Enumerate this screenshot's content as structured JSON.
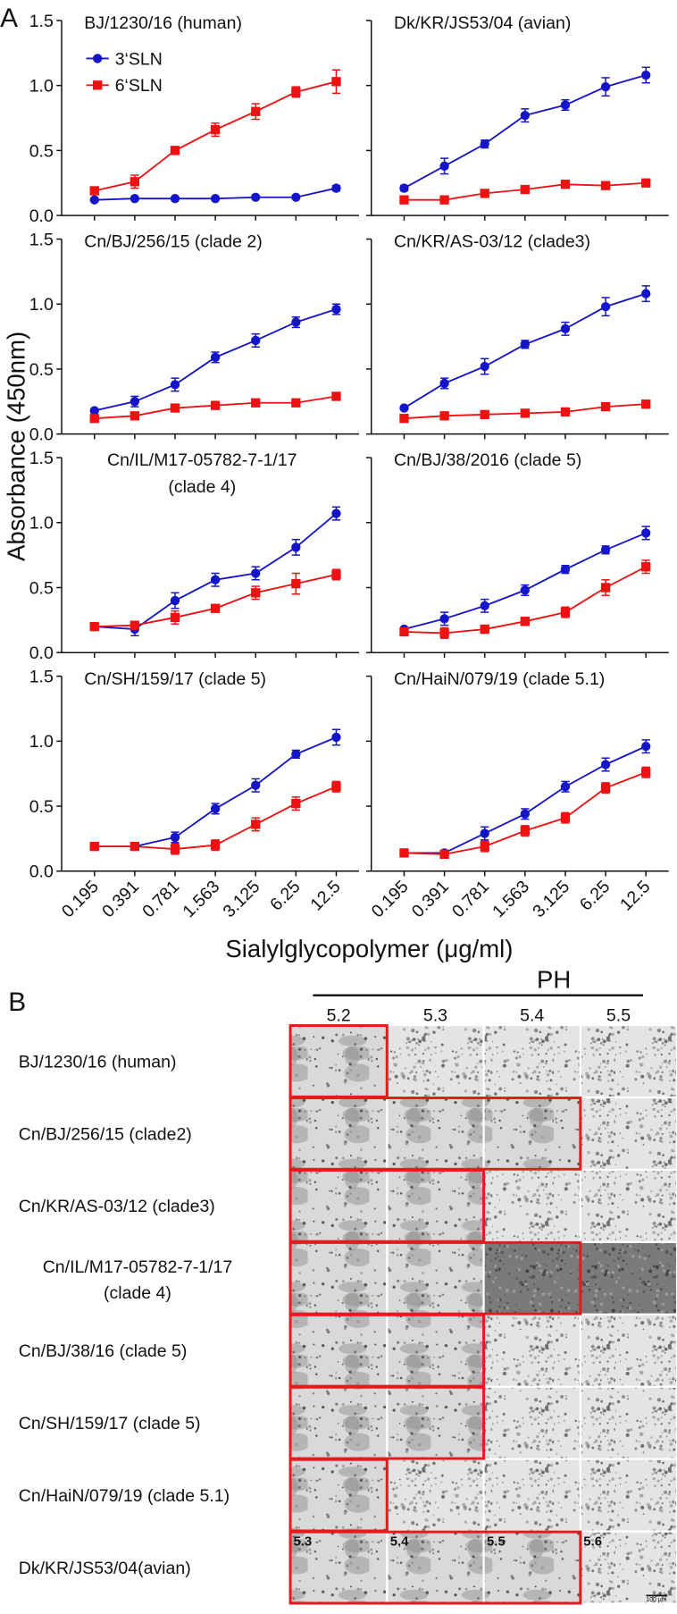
{
  "panel_labels": [
    "A",
    "B"
  ],
  "y_label": "Absorbance (450nm)",
  "x_label": "Sialylglycopolymer (μg/ml)",
  "chart_data": [
    {
      "type": "line",
      "title": "BJ/1230/16 (human)",
      "legend": true,
      "ytick_labels": true,
      "xtick_labels": false,
      "categories": [
        "0.195",
        "0.391",
        "0.781",
        "1.563",
        "3.125",
        "6.25",
        "12.5"
      ],
      "ylim": [
        0,
        1.5
      ],
      "yticks": [
        {
          "value": 0,
          "label": "0.0"
        },
        0.5,
        {
          "value": 1,
          "label": "1.0"
        },
        1.5
      ],
      "series": [
        {
          "name": "3‘SLN",
          "color": "#1414c8",
          "marker": "circle",
          "values": [
            0.12,
            0.13,
            0.13,
            0.13,
            0.14,
            0.14,
            0.21
          ],
          "errors": [
            0.01,
            0.01,
            0.01,
            0.01,
            0.01,
            0.01,
            0.02
          ]
        },
        {
          "name": "6‘SLN",
          "color": "#ee1111",
          "marker": "square",
          "values": [
            0.19,
            0.26,
            0.5,
            0.66,
            0.8,
            0.95,
            1.03
          ],
          "errors": [
            0.02,
            0.05,
            0.03,
            0.05,
            0.06,
            0.04,
            0.09
          ]
        }
      ]
    },
    {
      "type": "line",
      "title": "Dk/KR/JS53/04 (avian)",
      "ytick_labels": false,
      "xtick_labels": false,
      "categories": [
        "0.195",
        "0.391",
        "0.781",
        "1.563",
        "3.125",
        "6.25",
        "12.5"
      ],
      "ylim": [
        0,
        1.5
      ],
      "yticks": [
        0,
        0.5,
        1,
        1.5
      ],
      "series": [
        {
          "color": "#1414c8",
          "marker": "circle",
          "values": [
            0.21,
            0.38,
            0.55,
            0.77,
            0.85,
            0.99,
            1.08
          ],
          "errors": [
            0.02,
            0.06,
            0.03,
            0.05,
            0.04,
            0.07,
            0.06
          ]
        },
        {
          "color": "#ee1111",
          "marker": "square",
          "values": [
            0.12,
            0.12,
            0.17,
            0.2,
            0.24,
            0.23,
            0.25
          ],
          "errors": [
            0.02,
            0.02,
            0.02,
            0.02,
            0.02,
            0.02,
            0.02
          ]
        }
      ]
    },
    {
      "type": "line",
      "title": "Cn/BJ/256/15 (clade 2)",
      "ytick_labels": true,
      "xtick_labels": false,
      "categories": [
        "0.195",
        "0.391",
        "0.781",
        "1.563",
        "3.125",
        "6.25",
        "12.5"
      ],
      "ylim": [
        0,
        1.5
      ],
      "yticks": [
        {
          "value": 0,
          "label": "0.0"
        },
        0.5,
        {
          "value": 1,
          "label": "1.0"
        },
        1.5
      ],
      "series": [
        {
          "color": "#1414c8",
          "marker": "circle",
          "values": [
            0.18,
            0.25,
            0.38,
            0.59,
            0.72,
            0.86,
            0.96
          ],
          "errors": [
            0.01,
            0.04,
            0.05,
            0.04,
            0.05,
            0.04,
            0.04
          ]
        },
        {
          "color": "#ee1111",
          "marker": "square",
          "values": [
            0.12,
            0.14,
            0.2,
            0.22,
            0.24,
            0.24,
            0.29
          ],
          "errors": [
            0.02,
            0.02,
            0.02,
            0.02,
            0.02,
            0.02,
            0.02
          ]
        }
      ]
    },
    {
      "type": "line",
      "title": "Cn/KR/AS-03/12 (clade3)",
      "ytick_labels": false,
      "xtick_labels": false,
      "categories": [
        "0.195",
        "0.391",
        "0.781",
        "1.563",
        "3.125",
        "6.25",
        "12.5"
      ],
      "ylim": [
        0,
        1.5
      ],
      "yticks": [
        0,
        0.5,
        1,
        1.5
      ],
      "series": [
        {
          "color": "#1414c8",
          "marker": "circle",
          "values": [
            0.2,
            0.39,
            0.52,
            0.69,
            0.81,
            0.98,
            1.08
          ],
          "errors": [
            0.01,
            0.04,
            0.06,
            0.03,
            0.05,
            0.07,
            0.06
          ]
        },
        {
          "color": "#ee1111",
          "marker": "square",
          "values": [
            0.12,
            0.14,
            0.15,
            0.16,
            0.17,
            0.21,
            0.23
          ],
          "errors": [
            0.02,
            0.02,
            0.02,
            0.02,
            0.02,
            0.02,
            0.02
          ]
        }
      ]
    },
    {
      "type": "line",
      "title": [
        "Cn/IL/M17-05782-7-1/17",
        "(clade 4)"
      ],
      "ytick_labels": true,
      "xtick_labels": false,
      "categories": [
        "0.195",
        "0.391",
        "0.781",
        "1.563",
        "3.125",
        "6.25",
        "12.5"
      ],
      "ylim": [
        0,
        1.5
      ],
      "yticks": [
        {
          "value": 0,
          "label": "0.0"
        },
        0.5,
        {
          "value": 1,
          "label": "1.0"
        },
        1.5
      ],
      "series": [
        {
          "color": "#1414c8",
          "marker": "circle",
          "values": [
            0.2,
            0.18,
            0.4,
            0.56,
            0.61,
            0.81,
            1.07
          ],
          "errors": [
            0.02,
            0.05,
            0.06,
            0.05,
            0.05,
            0.06,
            0.05
          ]
        },
        {
          "color": "#ee1111",
          "marker": "square",
          "values": [
            0.2,
            0.21,
            0.27,
            0.34,
            0.46,
            0.53,
            0.6
          ],
          "errors": [
            0.02,
            0.03,
            0.05,
            0.02,
            0.05,
            0.08,
            0.04
          ]
        }
      ]
    },
    {
      "type": "line",
      "title": "Cn/BJ/38/2016 (clade 5)",
      "ytick_labels": false,
      "xtick_labels": false,
      "categories": [
        "0.195",
        "0.391",
        "0.781",
        "1.563",
        "3.125",
        "6.25",
        "12.5"
      ],
      "ylim": [
        0,
        1.5
      ],
      "yticks": [
        0,
        0.5,
        1,
        1.5
      ],
      "series": [
        {
          "color": "#1414c8",
          "marker": "circle",
          "values": [
            0.18,
            0.26,
            0.36,
            0.48,
            0.64,
            0.79,
            0.92
          ],
          "errors": [
            0.01,
            0.05,
            0.05,
            0.04,
            0.03,
            0.03,
            0.05
          ]
        },
        {
          "color": "#ee1111",
          "marker": "square",
          "values": [
            0.16,
            0.15,
            0.18,
            0.24,
            0.31,
            0.5,
            0.66
          ],
          "errors": [
            0.02,
            0.04,
            0.03,
            0.03,
            0.04,
            0.06,
            0.05
          ]
        }
      ]
    },
    {
      "type": "line",
      "title": "Cn/SH/159/17 (clade 5)",
      "ytick_labels": true,
      "xtick_labels": true,
      "categories": [
        "0.195",
        "0.391",
        "0.781",
        "1.563",
        "3.125",
        "6.25",
        "12.5"
      ],
      "ylim": [
        0,
        1.5
      ],
      "yticks": [
        {
          "value": 0,
          "label": "0.0"
        },
        0.5,
        {
          "value": 1,
          "label": "1.0"
        },
        1.5
      ],
      "series": [
        {
          "color": "#1414c8",
          "marker": "circle",
          "values": [
            0.19,
            0.19,
            0.26,
            0.48,
            0.66,
            0.9,
            1.03
          ],
          "errors": [
            0.02,
            0.02,
            0.04,
            0.04,
            0.05,
            0.03,
            0.06
          ]
        },
        {
          "color": "#ee1111",
          "marker": "square",
          "values": [
            0.19,
            0.19,
            0.17,
            0.2,
            0.36,
            0.52,
            0.65
          ],
          "errors": [
            0.02,
            0.02,
            0.04,
            0.04,
            0.05,
            0.05,
            0.04
          ]
        }
      ]
    },
    {
      "type": "line",
      "title": "Cn/HaiN/079/19 (clade 5.1)",
      "ytick_labels": false,
      "xtick_labels": true,
      "categories": [
        "0.195",
        "0.391",
        "0.781",
        "1.563",
        "3.125",
        "6.25",
        "12.5"
      ],
      "ylim": [
        0,
        1.5
      ],
      "yticks": [
        0,
        0.5,
        1,
        1.5
      ],
      "series": [
        {
          "color": "#1414c8",
          "marker": "circle",
          "values": [
            0.14,
            0.14,
            0.29,
            0.44,
            0.65,
            0.82,
            0.96
          ],
          "errors": [
            0.01,
            0.02,
            0.05,
            0.04,
            0.04,
            0.05,
            0.05
          ]
        },
        {
          "color": "#ee1111",
          "marker": "square",
          "values": [
            0.14,
            0.13,
            0.19,
            0.31,
            0.41,
            0.64,
            0.76
          ],
          "errors": [
            0.01,
            0.02,
            0.04,
            0.04,
            0.04,
            0.04,
            0.04
          ]
        }
      ]
    }
  ],
  "panel_b": {
    "header": "PH",
    "columns": [
      "5.2",
      "5.3",
      "5.4",
      "5.5"
    ],
    "rows": [
      {
        "label": "BJ/1230/16 (human)"
      },
      {
        "label": "Cn/BJ/256/15 (clade2)"
      },
      {
        "label": "Cn/KR/AS-03/12 (clade3)"
      },
      {
        "label": [
          "Cn/IL/M17-05782-7-1/17",
          "(clade 4)"
        ]
      },
      {
        "label": "Cn/BJ/38/16 (clade 5)"
      },
      {
        "label": "Cn/SH/159/17 (clade 5)"
      },
      {
        "label": "Cn/HaiN/079/19 (clade 5.1)"
      },
      {
        "label": "Dk/KR/JS53/04(avian)",
        "image_labels": [
          "5.3",
          "5.4",
          "5.5",
          "5.6"
        ]
      }
    ],
    "scale_bar": "100 μm"
  }
}
